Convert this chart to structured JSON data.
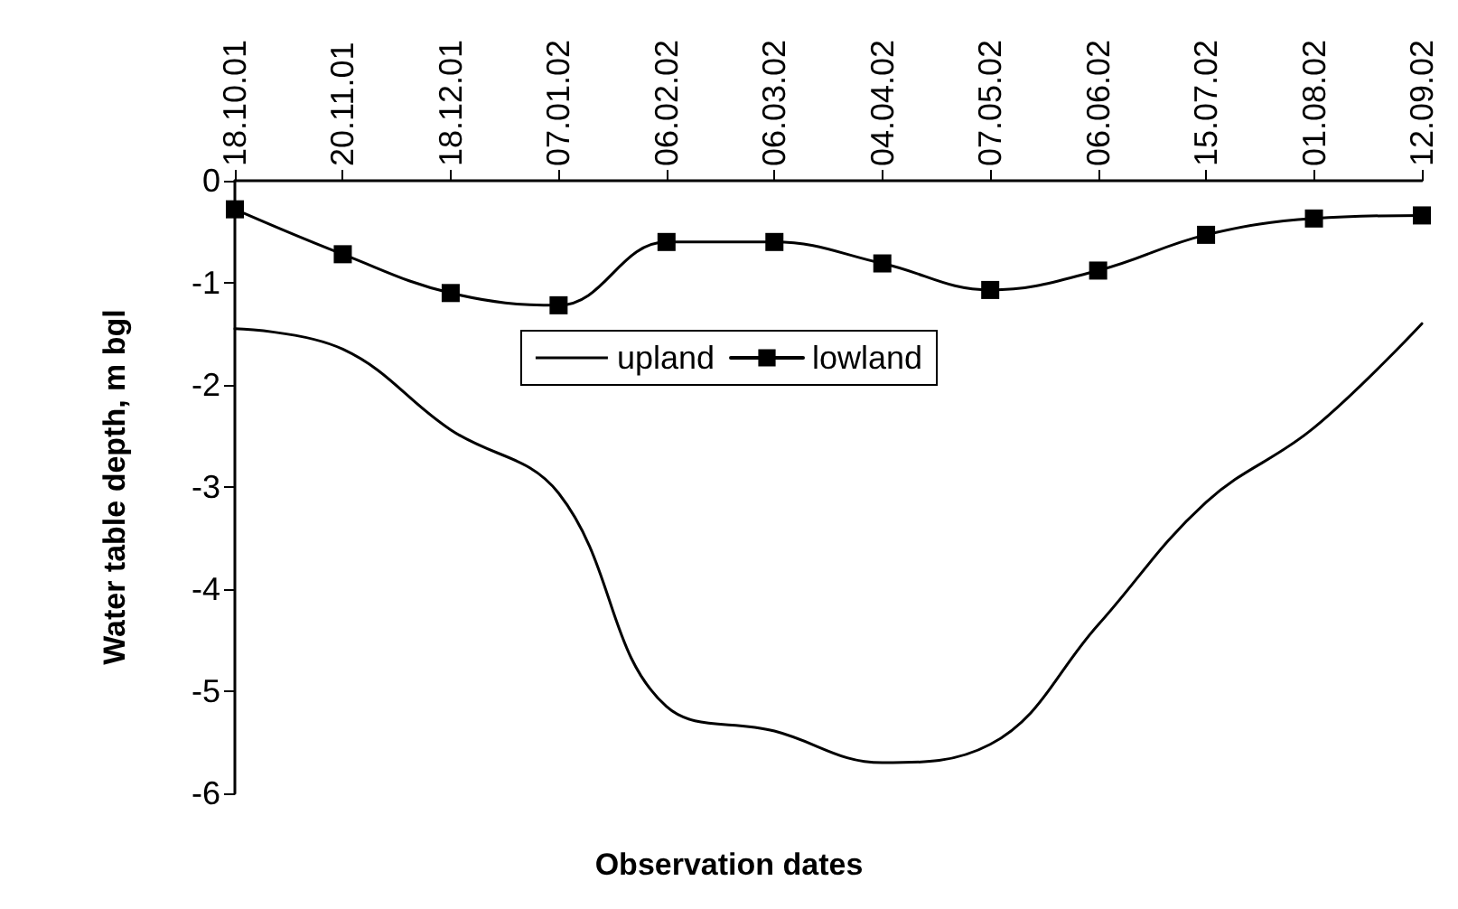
{
  "chart_data": {
    "type": "line",
    "xlabel": "Observation dates",
    "ylabel": "Water table depth, m bgl",
    "categories": [
      "18.10.01",
      "20.11.01",
      "18.12.01",
      "07.01.02",
      "06.02.02",
      "06.03.02",
      "04.04.02",
      "07.05.02",
      "06.06.02",
      "15.07.02",
      "01.08.02",
      "12.09.02"
    ],
    "series": [
      {
        "name": "upland",
        "color": "#000000",
        "marker": "none",
        "values": [
          -1.45,
          -1.65,
          -2.44,
          -3.06,
          -5.15,
          -5.39,
          -5.7,
          -5.52,
          -4.35,
          -3.15,
          -2.42,
          -1.4
        ]
      },
      {
        "name": "lowland",
        "color": "#000000",
        "marker": "square",
        "values": [
          -0.28,
          -0.72,
          -1.1,
          -1.22,
          -0.6,
          -0.6,
          -0.81,
          -1.07,
          -0.88,
          -0.53,
          -0.37,
          -0.34
        ]
      }
    ],
    "ylim": [
      -6,
      0
    ],
    "yticks": [
      -6,
      -5,
      -4,
      -3,
      -2,
      -1,
      0
    ],
    "grid": false,
    "legend": "top",
    "line_style": "solid"
  }
}
